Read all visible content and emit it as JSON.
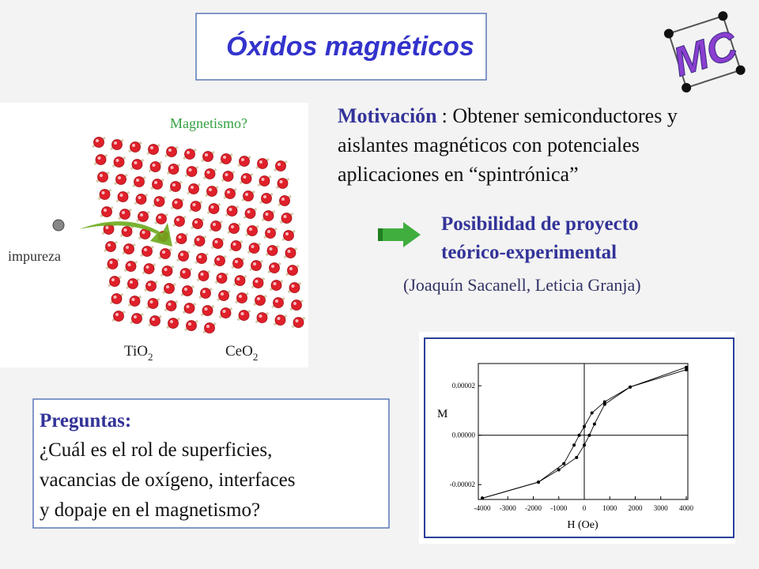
{
  "header": {
    "title": "Óxidos magnéticos"
  },
  "logo": {
    "text": "MC"
  },
  "image": {
    "caption": "Magnetismo?",
    "impurity": "impureza",
    "formulas": [
      {
        "base": "TiO",
        "sub": "2"
      },
      {
        "base": "CeO",
        "sub": "2"
      }
    ]
  },
  "motivation": {
    "label": "Motivación",
    "lines": [
      ": Obtener semiconductores y",
      "aislantes magnéticos con potenciales",
      "aplicaciones en “spintrónica”"
    ]
  },
  "proposal": {
    "lines": [
      "Posibilidad de proyecto",
      "teórico-experimental"
    ],
    "people": "(Joaquín Sacanell, Leticia Granja)"
  },
  "questions": {
    "label": "Preguntas:",
    "lines": [
      "¿Cuál es  el rol de superficies,",
      "vacancias de oxígeno, interfaces",
      "y dopaje en el magnetismo?"
    ]
  },
  "plot": {
    "xlabel": "H (Oe)",
    "ylabel": "M",
    "xlim": [
      -4000,
      4000
    ],
    "ylim": [
      -2.6e-05,
      2.9e-05
    ],
    "xticks": [
      -4000,
      -3000,
      -2000,
      -1000,
      0,
      1000,
      2000,
      3000,
      4000
    ],
    "yticks": [
      {
        "value": 2e-05,
        "label": "0.00002"
      },
      {
        "value": 0,
        "label": "0.00000"
      },
      {
        "value": -2e-05,
        "label": "-0.00002"
      }
    ],
    "series": [
      {
        "x": [
          4000,
          1800,
          800,
          300,
          0,
          -200,
          -400,
          -800,
          -1800,
          -4000
        ],
        "values": [
          2.75e-05,
          1.95e-05,
          1.35e-05,
          9e-06,
          3.5e-06,
          0,
          -4e-06,
          -1.15e-05,
          -1.9e-05,
          -2.55e-05
        ]
      },
      {
        "x": [
          -4000,
          -1800,
          -1000,
          -300,
          0,
          200,
          400,
          800,
          1800,
          4000
        ],
        "values": [
          -2.55e-05,
          -1.9e-05,
          -1.4e-05,
          -9e-06,
          -4e-06,
          0,
          4.5e-06,
          1.25e-05,
          1.95e-05,
          2.65e-05
        ]
      }
    ]
  }
}
